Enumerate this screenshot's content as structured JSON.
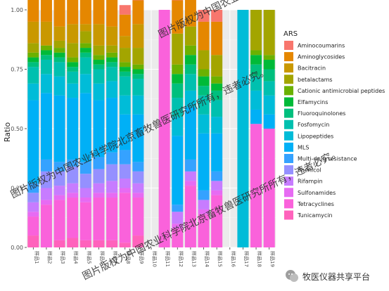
{
  "chart_data": {
    "type": "bar",
    "stacked": true,
    "ylabel": "Ratio",
    "ylim": [
      0,
      1
    ],
    "yticks": [
      "0.00",
      "0.25",
      "0.50",
      "0.75",
      "1.00"
    ],
    "legend_title": "ARS",
    "legend_position": "right",
    "categories": [
      "样品1",
      "样品2",
      "样品3",
      "样品4",
      "样品5",
      "样品6",
      "样品7",
      "样品8",
      "样品9",
      "样品10",
      "样品11",
      "样品12",
      "样品13",
      "样品14",
      "样品15",
      "样品16",
      "样品17",
      "样品18",
      "样品19"
    ],
    "series": [
      {
        "name": "Aminocoumarins",
        "color": "#F8766D",
        "values": [
          0.05,
          0.05,
          0.05,
          0.04,
          0.04,
          0.04,
          0.05,
          0.04,
          0.04,
          0,
          0,
          0.06,
          0.05,
          0.05,
          0.05,
          0,
          0,
          0,
          0
        ]
      },
      {
        "name": "Aminoglycosides",
        "color": "#E58700",
        "values": [
          0.1,
          0.1,
          0.12,
          0.12,
          0.12,
          0.12,
          0.12,
          0.09,
          0.1,
          0,
          0,
          0.14,
          0.12,
          0.12,
          0.14,
          0,
          0,
          0,
          0
        ]
      },
      {
        "name": "Bacitracin",
        "color": "#C99800",
        "values": [
          0.09,
          0.1,
          0.06,
          0.08,
          0.03,
          0.09,
          0.08,
          0.05,
          0.1,
          0,
          0,
          0,
          0,
          0,
          0,
          0,
          0,
          0,
          0
        ]
      },
      {
        "name": "betalactams",
        "color": "#A3A500",
        "values": [
          0.04,
          0,
          0.03,
          0.06,
          0.05,
          0.04,
          0.03,
          0.06,
          0.07,
          0,
          0,
          0.13,
          0.08,
          0.08,
          0.09,
          0,
          0,
          0.17,
          0.19
        ]
      },
      {
        "name": "Cationic antimicrobial peptides",
        "color": "#6BB100",
        "values": [
          0.02,
          0.02,
          0.02,
          0.02,
          0.02,
          0.02,
          0.02,
          0.02,
          0.02,
          0,
          0,
          0.04,
          0.04,
          0.03,
          0.03,
          0,
          0,
          0.02,
          0.02
        ]
      },
      {
        "name": "Elfamycins",
        "color": "#00BA38",
        "values": [
          0.02,
          0.02,
          0.02,
          0.02,
          0.02,
          0.02,
          0.02,
          0.02,
          0.02,
          0,
          0,
          0.04,
          0.04,
          0.04,
          0.03,
          0,
          0,
          0.04,
          0.04
        ]
      },
      {
        "name": "Fluoroquinolones",
        "color": "#00BF7D",
        "values": [
          0.02,
          0.02,
          0.02,
          0.02,
          0.02,
          0.02,
          0.02,
          0.02,
          0.02,
          0,
          0,
          0.06,
          0.04,
          0.04,
          0.04,
          0,
          0,
          0.05,
          0.05
        ]
      },
      {
        "name": "Fosfomycin",
        "color": "#00C0AF",
        "values": [
          0.07,
          0.06,
          0.06,
          0.05,
          0.07,
          0.06,
          0.06,
          0.08,
          0.07,
          0,
          0,
          0.08,
          0.07,
          0.08,
          0.07,
          0,
          0,
          0.06,
          0.06
        ]
      },
      {
        "name": "Lipopeptides",
        "color": "#00BCD8",
        "values": [
          0.07,
          0.08,
          0.08,
          0.06,
          0.08,
          0.07,
          0.07,
          0.08,
          0.08,
          0,
          0,
          0.08,
          0.07,
          0.08,
          0.07,
          0,
          1.0,
          0.08,
          0.08
        ]
      },
      {
        "name": "MLS",
        "color": "#00B0F6",
        "values": [
          0.35,
          0.28,
          0.28,
          0.26,
          0.29,
          0.24,
          0.23,
          0.15,
          0.2,
          0,
          0,
          0.29,
          0.22,
          0.24,
          0.16,
          0,
          0,
          0.06,
          0.06
        ]
      },
      {
        "name": "Multi-drug resistance",
        "color": "#35A2FF",
        "values": [
          0.04,
          0.05,
          0.04,
          0.03,
          0.05,
          0.05,
          0.05,
          0.06,
          0.04,
          0,
          0,
          0.03,
          0.05,
          0.04,
          0.04,
          0,
          0,
          0,
          0
        ]
      },
      {
        "name": "Phenicol",
        "color": "#9590FF",
        "values": [
          0.04,
          0.07,
          0.06,
          0.07,
          0.06,
          0.06,
          0.07,
          0.06,
          0.05,
          0,
          0,
          0,
          0,
          0,
          0,
          0,
          0,
          0,
          0
        ]
      },
      {
        "name": "Rifampin",
        "color": "#C77CFF",
        "values": [
          0.04,
          0.05,
          0.04,
          0.04,
          0.04,
          0.04,
          0.05,
          0.04,
          0.04,
          0,
          0,
          0.05,
          0.04,
          0.04,
          0.04,
          0,
          0,
          0,
          0
        ]
      },
      {
        "name": "Sulfonamides",
        "color": "#E76BF3",
        "values": [
          0.02,
          0.02,
          0.02,
          0.02,
          0.02,
          0.02,
          0.02,
          0.02,
          0.02,
          0,
          0,
          0.02,
          0.02,
          0.02,
          0.02,
          0,
          0,
          0,
          0
        ]
      },
      {
        "name": "Tetracyclines",
        "color": "#FA62DB",
        "values": [
          0.08,
          0.18,
          0.17,
          0.17,
          0.16,
          0.18,
          0.18,
          0.21,
          0.16,
          0,
          1.0,
          0.08,
          0.26,
          0.14,
          0.22,
          0,
          0,
          0.52,
          0.5
        ]
      },
      {
        "name": "Tunicamycin",
        "color": "#FF62BC",
        "values": [
          0.05,
          0,
          0.03,
          0.04,
          0.03,
          0.03,
          0.03,
          0.02,
          0.05,
          0,
          0,
          0,
          0,
          0,
          0,
          0,
          0,
          0,
          0
        ]
      }
    ]
  },
  "watermarks": [
    "图片版权为中国农业科学院北京畜牧兽医研究所所有，违者必究。",
    "图片版权为中国农业科学院北京畜牧兽医研究所所有，违者必究。",
    "图片版权为中国农业科学院北京畜牧兽医研究所所有，违者必究。"
  ],
  "logo": {
    "text": "牧医仪器共享平台",
    "icon": "wechat-logo-icon"
  }
}
